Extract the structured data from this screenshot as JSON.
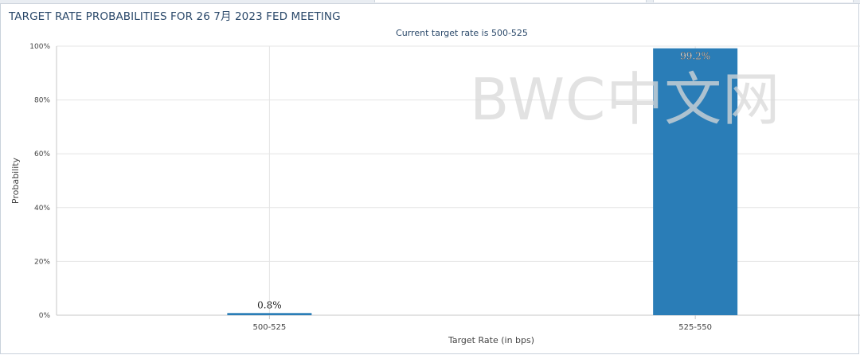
{
  "title": "TARGET RATE PROBABILITIES FOR 26 7月 2023 FED MEETING",
  "subtitle": "Current target rate is 500-525",
  "watermark": "BWC中文网",
  "colors": {
    "bar": "#2a7db7",
    "title": "#2c4a6b",
    "grid": "#e4e4e4",
    "axis": "#c7c7c7"
  },
  "chart_data": {
    "type": "bar",
    "categories": [
      "500-525",
      "525-550"
    ],
    "values": [
      0.8,
      99.2
    ],
    "data_labels": [
      "0.8%",
      "99.2%"
    ],
    "xlabel": "Target Rate (in bps)",
    "ylabel": "Probability",
    "ylim": [
      0,
      100
    ],
    "yticks": [
      "0%",
      "20%",
      "40%",
      "60%",
      "80%",
      "100%"
    ],
    "grid": true,
    "legend": "none"
  }
}
